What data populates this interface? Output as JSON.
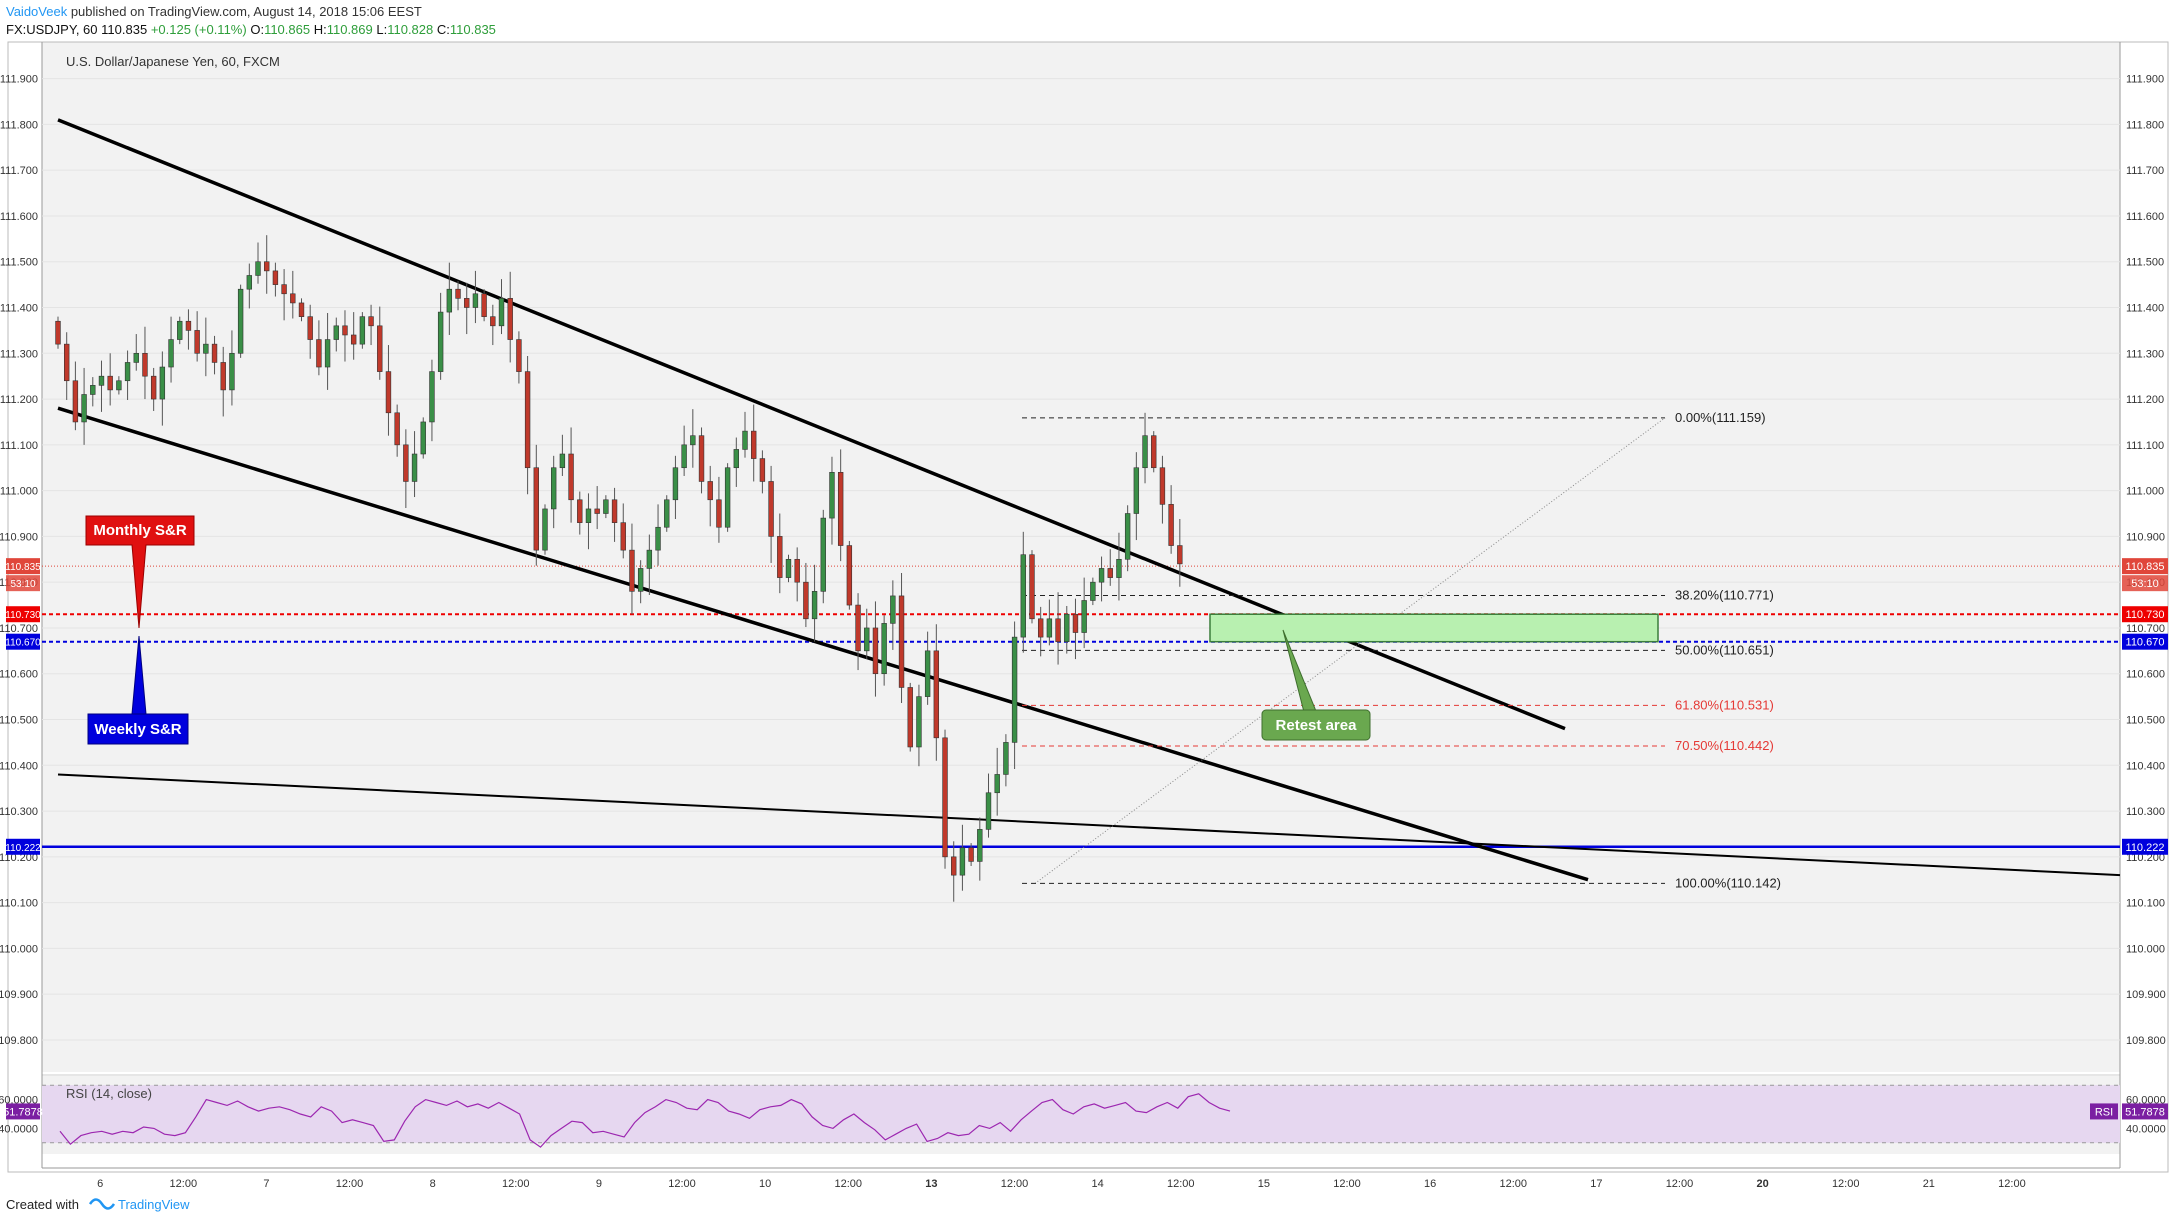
{
  "header": {
    "author": "VaidoVeek",
    "published": "published on TradingView.com, August 14, 2018 15:06 EEST",
    "symbol": "FX:USDJPY, 60",
    "last": "110.835",
    "change": "+0.125 (+0.11%)",
    "o_label": "O:",
    "o_value": "110.865",
    "h_label": "H:",
    "h_value": "110.869",
    "l_label": "L:",
    "l_value": "110.828",
    "c_label": "C:",
    "c_value": "110.835"
  },
  "footer": {
    "created_with": "Created with",
    "brand": "TradingView"
  },
  "colors": {
    "bg": "#f2f2f2",
    "up": "#3a8f47",
    "down": "#c0392b",
    "rsi_band": "#e6d7f0",
    "rsi_line": "#9c27b0",
    "blue": "#0000dd",
    "red": "#ee0000",
    "green_zone": "#b8f0b0"
  },
  "chart_data": {
    "type": "candlestick",
    "title": "U.S. Dollar/Japanese Yen, 60, FXCM",
    "y_range": [
      109.73,
      111.98
    ],
    "y_ticks": [
      "111.900",
      "111.800",
      "111.700",
      "111.600",
      "111.500",
      "111.400",
      "111.300",
      "111.200",
      "111.100",
      "111.000",
      "110.900",
      "110.800",
      "110.700",
      "110.600",
      "110.500",
      "110.400",
      "110.300",
      "110.200",
      "110.100",
      "110.000",
      "109.900",
      "109.800"
    ],
    "x_ticks": [
      "6",
      "12:00",
      "7",
      "12:00",
      "8",
      "12:00",
      "9",
      "12:00",
      "10",
      "12:00",
      "13",
      "12:00",
      "14",
      "12:00",
      "15",
      "12:00",
      "16",
      "12:00",
      "17",
      "12:00",
      "20",
      "12:00",
      "21",
      "12:00"
    ],
    "close_path": [
      111.32,
      111.24,
      111.15,
      111.21,
      111.23,
      111.25,
      111.22,
      111.24,
      111.28,
      111.3,
      111.25,
      111.2,
      111.27,
      111.33,
      111.37,
      111.35,
      111.3,
      111.32,
      111.28,
      111.22,
      111.3,
      111.44,
      111.47,
      111.5,
      111.48,
      111.45,
      111.43,
      111.41,
      111.38,
      111.33,
      111.27,
      111.33,
      111.36,
      111.34,
      111.32,
      111.38,
      111.36,
      111.26,
      111.17,
      111.1,
      111.02,
      111.08,
      111.15,
      111.26,
      111.39,
      111.44,
      111.42,
      111.4,
      111.43,
      111.38,
      111.36,
      111.42,
      111.33,
      111.26,
      111.05,
      110.87,
      110.96,
      111.05,
      111.08,
      110.98,
      110.93,
      110.96,
      110.95,
      110.98,
      110.93,
      110.87,
      110.78,
      110.83,
      110.87,
      110.92,
      110.98,
      111.05,
      111.1,
      111.12,
      111.02,
      110.98,
      110.92,
      111.05,
      111.09,
      111.13,
      111.07,
      111.02,
      110.9,
      110.81,
      110.85,
      110.8,
      110.72,
      110.78,
      110.94,
      111.04,
      110.88,
      110.75,
      110.65,
      110.7,
      110.6,
      110.71,
      110.77,
      110.57,
      110.44,
      110.55,
      110.65,
      110.46,
      110.2,
      110.16,
      110.22,
      110.19,
      110.26,
      110.34,
      110.38,
      110.45,
      110.68,
      110.86,
      110.72,
      110.68,
      110.72,
      110.67,
      110.73,
      110.69,
      110.76,
      110.8,
      110.83,
      110.81,
      110.85,
      110.95,
      111.05,
      111.12,
      111.05,
      110.97,
      110.88,
      110.84
    ],
    "close_end": [
      111.15,
      111.1,
      110.5,
      110.2,
      110.12,
      110.84
    ],
    "price_labels": [
      {
        "value": 110.835,
        "label": "110.835",
        "color": "#e0463a"
      },
      {
        "value": 110.73,
        "label": "110.730",
        "color": "#ee0000"
      },
      {
        "value": 110.67,
        "label": "110.670",
        "color": "#0000dd"
      },
      {
        "value": 110.222,
        "label": "110.222",
        "color": "#0000dd"
      }
    ],
    "countdown": "53:10",
    "fibonacci": [
      {
        "ratio": "0.00%",
        "value": 111.159,
        "label": "0.00%(111.159)",
        "color": "#222222"
      },
      {
        "ratio": "38.20%",
        "value": 110.771,
        "label": "38.20%(110.771)",
        "color": "#222222"
      },
      {
        "ratio": "50.00%",
        "value": 110.651,
        "label": "50.00%(110.651)",
        "color": "#222222"
      },
      {
        "ratio": "61.80%",
        "value": 110.531,
        "label": "61.80%(110.531)",
        "color": "#e53935"
      },
      {
        "ratio": "70.50%",
        "value": 110.442,
        "label": "70.50%(110.442)",
        "color": "#e53935"
      },
      {
        "ratio": "100.00%",
        "value": 110.142,
        "label": "100.00%(110.142)",
        "color": "#222222"
      }
    ],
    "annotations": {
      "monthly": "Monthly S&R",
      "weekly": "Weekly S&R",
      "retest": "Retest area"
    },
    "rsi": {
      "label": "RSI (14, close)",
      "value": "51.7878",
      "tag": "RSI",
      "axis_labels": [
        "60.0000",
        "40.0000"
      ],
      "overbought": 70,
      "oversold": 30,
      "y_range": [
        25,
        75
      ],
      "values": [
        38,
        29,
        35,
        37,
        38,
        36,
        38,
        37,
        41,
        40,
        36,
        35,
        37,
        48,
        60,
        58,
        56,
        59,
        55,
        52,
        54,
        55,
        53,
        50,
        48,
        55,
        52,
        44,
        46,
        44,
        42,
        31,
        32,
        45,
        55,
        60,
        58,
        56,
        59,
        55,
        57,
        54,
        58,
        54,
        50,
        32,
        27,
        35,
        40,
        45,
        44,
        37,
        38,
        36,
        34,
        44,
        51,
        55,
        60,
        58,
        54,
        53,
        60,
        58,
        52,
        50,
        47,
        53,
        55,
        56,
        60,
        57,
        48,
        42,
        40,
        46,
        50,
        44,
        39,
        32,
        36,
        40,
        43,
        31,
        33,
        37,
        35,
        36,
        42,
        40,
        44,
        38,
        46,
        52,
        58,
        60,
        53,
        50,
        55,
        57,
        54,
        56,
        58,
        52,
        51,
        55,
        58,
        54,
        62,
        64,
        58,
        54,
        52
      ]
    }
  }
}
